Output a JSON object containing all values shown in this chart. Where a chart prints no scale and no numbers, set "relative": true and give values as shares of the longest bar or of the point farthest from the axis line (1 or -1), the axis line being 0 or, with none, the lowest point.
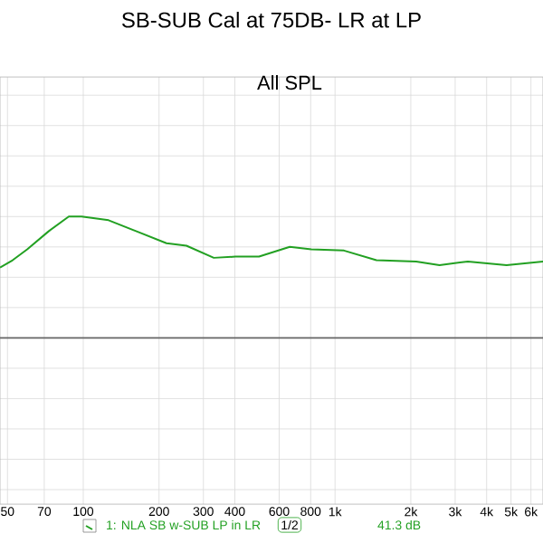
{
  "chart_data": {
    "type": "line",
    "title": "SB-SUB Cal at 75DB- LR at LP",
    "annotations": [
      "All SPL",
      "1/2",
      "41.3 dB"
    ],
    "x": [
      46.7,
      52.4,
      59.9,
      73.0,
      87.6,
      98.4,
      126,
      162,
      214,
      257,
      330,
      402,
      499,
      661,
      805,
      1085,
      1460,
      2100,
      2600,
      3370,
      4800,
      6700
    ],
    "series": [
      {
        "name": "1: NLA SB w-SUB LP in LR",
        "color": "#22a022",
        "values": [
          0.58,
          0.64,
          0.73,
          0.88,
          1.0,
          1.0,
          0.97,
          0.88,
          0.78,
          0.76,
          0.66,
          0.67,
          0.67,
          0.75,
          0.73,
          0.72,
          0.64,
          0.63,
          0.6,
          0.63,
          0.6,
          0.63
        ]
      }
    ],
    "relative": true,
    "log": "x",
    "xlim": [
      46.7,
      6700
    ],
    "xticks": [
      50,
      70,
      100,
      200,
      300,
      400,
      600,
      800,
      {
        "value": 1000,
        "label": "1k"
      },
      {
        "value": 2000,
        "label": "2k"
      },
      {
        "value": 3000,
        "label": "3k"
      },
      {
        "value": 4000,
        "label": "4k"
      },
      {
        "value": 5000,
        "label": "5k"
      },
      {
        "value": 6000,
        "label": "6k"
      }
    ],
    "grid": true,
    "legend": "bottom",
    "marker": "none",
    "line_style": "solid"
  }
}
